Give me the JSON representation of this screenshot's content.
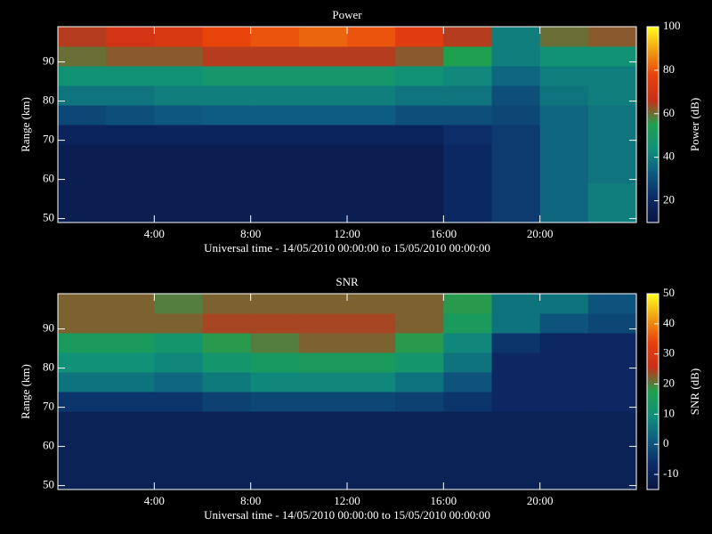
{
  "chart_data": [
    {
      "type": "heatmap",
      "title": "Power",
      "xlabel": "Universal time - 14/05/2010 00:00:00 to 15/05/2010 00:00:00",
      "ylabel": "Range (km)",
      "zlabel": "Power (dB)",
      "xlim": [
        0,
        24
      ],
      "xticks": [
        {
          "value": 4,
          "label": "4:00"
        },
        {
          "value": 8,
          "label": "8:00"
        },
        {
          "value": 12,
          "label": "12:00"
        },
        {
          "value": 16,
          "label": "16:00"
        },
        {
          "value": 20,
          "label": "20:00"
        }
      ],
      "ylim": [
        49,
        99
      ],
      "yticks": [
        50,
        60,
        70,
        80,
        90
      ],
      "zlim": [
        10,
        100
      ],
      "zticks": [
        20,
        40,
        60,
        80,
        100
      ],
      "x_bins": [
        0,
        2,
        4,
        6,
        8,
        10,
        12,
        14,
        16,
        18,
        20,
        22,
        24
      ],
      "y_bins": [
        49,
        54,
        59,
        64,
        69,
        74,
        79,
        84,
        89,
        94,
        99
      ],
      "colormap": [
        "#0a1440",
        "#0c2a66",
        "#0e5a80",
        "#10907a",
        "#1fa050",
        "#c83018",
        "#e8400c",
        "#f09a10",
        "#ffff20"
      ],
      "values": [
        [
          15,
          15,
          15,
          15,
          15,
          15,
          15,
          15,
          20,
          25,
          35,
          40
        ],
        [
          15,
          15,
          15,
          15,
          15,
          15,
          15,
          15,
          20,
          25,
          35,
          40
        ],
        [
          15,
          15,
          15,
          15,
          15,
          15,
          15,
          15,
          20,
          25,
          35,
          38
        ],
        [
          15,
          15,
          15,
          15,
          15,
          15,
          15,
          15,
          20,
          25,
          35,
          38
        ],
        [
          18,
          18,
          18,
          18,
          18,
          18,
          18,
          18,
          22,
          25,
          35,
          38
        ],
        [
          28,
          30,
          32,
          33,
          33,
          33,
          33,
          30,
          30,
          28,
          35,
          38
        ],
        [
          38,
          38,
          40,
          40,
          40,
          40,
          40,
          38,
          38,
          30,
          38,
          40
        ],
        [
          45,
          45,
          45,
          48,
          48,
          48,
          48,
          45,
          42,
          35,
          40,
          40
        ],
        [
          60,
          62,
          62,
          65,
          65,
          65,
          65,
          62,
          55,
          40,
          45,
          45
        ],
        [
          65,
          70,
          72,
          78,
          80,
          82,
          80,
          75,
          65,
          40,
          60,
          62
        ]
      ]
    },
    {
      "type": "heatmap",
      "title": "SNR",
      "xlabel": "Universal time - 14/05/2010 00:00:00 to 15/05/2010 00:00:00",
      "ylabel": "Range (km)",
      "zlabel": "SNR (dB)",
      "xlim": [
        0,
        24
      ],
      "xticks": [
        {
          "value": 4,
          "label": "4:00"
        },
        {
          "value": 8,
          "label": "8:00"
        },
        {
          "value": 12,
          "label": "12:00"
        },
        {
          "value": 16,
          "label": "16:00"
        },
        {
          "value": 20,
          "label": "20:00"
        }
      ],
      "ylim": [
        49,
        99
      ],
      "yticks": [
        50,
        60,
        70,
        80,
        90
      ],
      "zlim": [
        -15,
        50
      ],
      "zticks": [
        -10,
        0,
        10,
        20,
        30,
        40,
        50
      ],
      "x_bins": [
        0,
        2,
        4,
        6,
        8,
        10,
        12,
        14,
        16,
        18,
        20,
        22,
        24
      ],
      "y_bins": [
        49,
        54,
        59,
        64,
        69,
        74,
        79,
        84,
        89,
        94,
        99
      ],
      "colormap": [
        "#0a1440",
        "#0c2a66",
        "#0e5a80",
        "#10907a",
        "#1fa050",
        "#c83018",
        "#e8400c",
        "#f09a10",
        "#ffff20"
      ],
      "values": [
        [
          -10,
          -10,
          -10,
          -10,
          -10,
          -10,
          -10,
          -10,
          -10,
          -10,
          -10,
          -10
        ],
        [
          -10,
          -10,
          -10,
          -10,
          -10,
          -10,
          -10,
          -10,
          -10,
          -10,
          -10,
          -10
        ],
        [
          -10,
          -10,
          -10,
          -10,
          -10,
          -10,
          -10,
          -10,
          -10,
          -10,
          -10,
          -10
        ],
        [
          -10,
          -10,
          -10,
          -10,
          -10,
          -10,
          -10,
          -10,
          -10,
          -10,
          -10,
          -10
        ],
        [
          -5,
          -5,
          -5,
          -3,
          -2,
          -2,
          -2,
          -3,
          -5,
          -8,
          -8,
          -8
        ],
        [
          5,
          5,
          3,
          6,
          8,
          8,
          8,
          5,
          0,
          -8,
          -8,
          -8
        ],
        [
          10,
          10,
          8,
          12,
          14,
          15,
          15,
          12,
          5,
          -8,
          -8,
          -8
        ],
        [
          15,
          15,
          12,
          18,
          20,
          22,
          22,
          18,
          8,
          -5,
          -8,
          -8
        ],
        [
          22,
          22,
          22,
          24,
          24,
          24,
          24,
          22,
          15,
          5,
          0,
          -2
        ],
        [
          22,
          22,
          20,
          22,
          22,
          22,
          22,
          22,
          18,
          5,
          5,
          0
        ]
      ]
    }
  ]
}
